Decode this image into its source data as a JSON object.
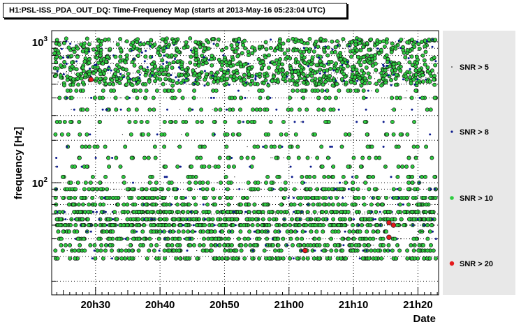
{
  "chart_data": {
    "type": "scatter",
    "title": "H1:PSL-ISS_PDA_OUT_DQ: Time-Frequency Map (starts at 2013-May-16 05:23:04 UTC)",
    "xlabel": "Date",
    "ylabel": "frequency [Hz]",
    "y_scale": "log",
    "ylim": [
      16,
      1200
    ],
    "xlim_minutes": [
      23.2,
      83.2
    ],
    "x_ticks": [
      {
        "label": "20h30",
        "value": 30
      },
      {
        "label": "20h40",
        "value": 40
      },
      {
        "label": "20h50",
        "value": 50
      },
      {
        "label": "21h00",
        "value": 60
      },
      {
        "label": "21h10",
        "value": 70
      },
      {
        "label": "21h20",
        "value": 80
      }
    ],
    "y_ticks": [
      {
        "base": "10",
        "exp": "2",
        "value": 100
      },
      {
        "base": "10",
        "exp": "3",
        "value": 1000
      }
    ],
    "grid": true,
    "legend": {
      "position": "right",
      "entries": [
        {
          "label": "SNR > 5",
          "color": "#000000",
          "marker": "dot"
        },
        {
          "label": "SNR > 8",
          "color": "#0a1a8c",
          "marker": "small"
        },
        {
          "label": "SNR > 10",
          "color": "#2ecc40",
          "marker": "circle"
        },
        {
          "label": "SNR > 20",
          "color": "#e41a1c",
          "marker": "large"
        }
      ]
    },
    "frequency_bands_hz": [
      1000,
      880,
      760,
      680,
      600,
      560,
      520,
      450,
      400,
      330,
      270,
      220,
      180,
      150,
      130,
      110,
      100,
      90,
      78,
      70,
      62,
      55,
      50,
      45,
      40,
      36,
      33,
      29
    ],
    "points_snr_gt_20": [
      {
        "minute": 29.3,
        "freq": 540
      },
      {
        "minute": 62.5,
        "freq": 33
      },
      {
        "minute": 75.5,
        "freq": 52
      },
      {
        "minute": 76.2,
        "freq": 50
      },
      {
        "minute": 75.5,
        "freq": 41
      }
    ]
  }
}
